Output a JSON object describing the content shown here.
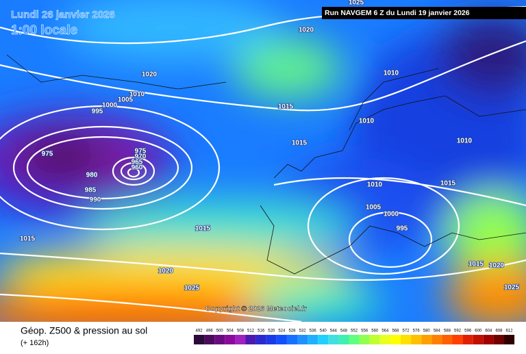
{
  "header": {
    "date": "Lundi 26 janvier 2026",
    "time": "1:00 locale",
    "run": "Run NAVGEM 6 Z du Lundi 19 janvier 2026"
  },
  "copyright": "Copyright © 2026 Meteociel.fr",
  "footer": {
    "title": "Géop. Z500 & pression au sol",
    "lead": "(+ 162h)"
  },
  "scale": [
    492,
    496,
    500,
    504,
    508,
    512,
    516,
    520,
    524,
    528,
    532,
    536,
    540,
    544,
    548,
    552,
    556,
    560,
    564,
    568,
    572,
    576,
    580,
    584,
    588,
    592,
    596,
    600,
    604,
    608,
    612
  ],
  "isobar_labels": [
    "1025",
    "1020",
    "1020",
    "1010",
    "1005",
    "1000",
    "995",
    "975",
    "975",
    "970",
    "965",
    "960",
    "980",
    "985",
    "990",
    "1015",
    "1015",
    "1020",
    "1025",
    "1010",
    "1015",
    "1010",
    "1015",
    "1010",
    "1015",
    "1010",
    "1005",
    "1000",
    "995",
    "1015",
    "1020",
    "1025"
  ]
}
